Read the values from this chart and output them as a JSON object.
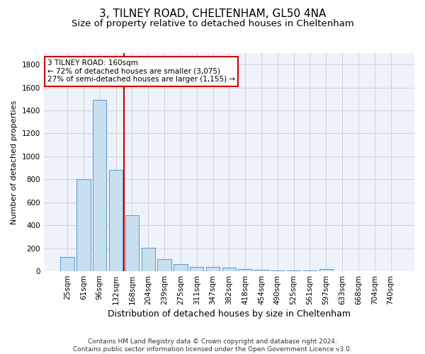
{
  "title": "3, TILNEY ROAD, CHELTENHAM, GL50 4NA",
  "subtitle": "Size of property relative to detached houses in Cheltenham",
  "xlabel": "Distribution of detached houses by size in Cheltenham",
  "ylabel": "Number of detached properties",
  "footer_line1": "Contains HM Land Registry data © Crown copyright and database right 2024.",
  "footer_line2": "Contains public sector information licensed under the Open Government Licence v3.0.",
  "bar_labels": [
    "25sqm",
    "61sqm",
    "96sqm",
    "132sqm",
    "168sqm",
    "204sqm",
    "239sqm",
    "275sqm",
    "311sqm",
    "347sqm",
    "382sqm",
    "418sqm",
    "454sqm",
    "490sqm",
    "525sqm",
    "561sqm",
    "597sqm",
    "633sqm",
    "668sqm",
    "704sqm",
    "740sqm"
  ],
  "bar_values": [
    125,
    800,
    1490,
    880,
    490,
    205,
    105,
    65,
    40,
    35,
    30,
    20,
    10,
    5,
    5,
    5,
    20,
    2,
    2,
    2,
    2
  ],
  "bar_color": "#c8dff0",
  "bar_edge_color": "#5599cc",
  "vline_x_index": 4,
  "vline_color": "#cc0000",
  "annotation_line1": "3 TILNEY ROAD: 160sqm",
  "annotation_line2": "← 72% of detached houses are smaller (3,075)",
  "annotation_line3": "27% of semi-detached houses are larger (1,155) →",
  "annotation_box_color": "#cc0000",
  "ylim": [
    0,
    1900
  ],
  "yticks": [
    0,
    200,
    400,
    600,
    800,
    1000,
    1200,
    1400,
    1600,
    1800
  ],
  "background_color": "#eef2fb",
  "grid_color": "#cccccc",
  "title_fontsize": 11,
  "subtitle_fontsize": 9.5,
  "xlabel_fontsize": 9,
  "ylabel_fontsize": 8,
  "tick_fontsize": 7.5,
  "annotation_fontsize": 7.5,
  "footer_fontsize": 6.5
}
